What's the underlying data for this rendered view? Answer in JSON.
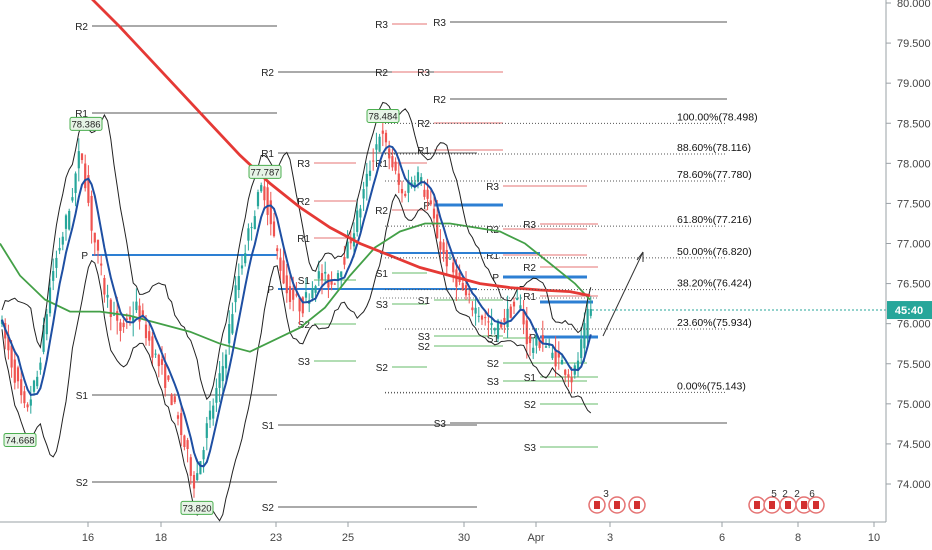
{
  "chart_data": {
    "type": "candlestick",
    "ylim": [
      73.6,
      80.0
    ],
    "y_ticks": [
      80.0,
      79.5,
      79.0,
      78.5,
      78.0,
      77.5,
      77.0,
      76.5,
      76.0,
      75.5,
      75.0,
      74.5,
      74.0
    ],
    "y_tick_labels": [
      "80.000",
      "79.500",
      "79.000",
      "78.500",
      "78.000",
      "77.500",
      "77.000",
      "76.500",
      "76.000",
      "75.500",
      "75.000",
      "74.500",
      "74.000"
    ],
    "x_tick_labels": [
      "16",
      "18",
      "23",
      "25",
      "30",
      "Apr",
      "3",
      "6",
      "8",
      "10"
    ],
    "last_price": 76.17,
    "price_tag": "45:40",
    "colors": {
      "up": "#26a69a",
      "down": "#ef5350",
      "ma_slow": "#e53935",
      "ma_fast": "#1e4fa3",
      "ma_mid": "#43a047",
      "bands": "#222222",
      "pivot": "#2d7fd3",
      "level": "#555555"
    },
    "price_labels": [
      {
        "text": "78.386",
        "price": 78.386
      },
      {
        "text": "74.668",
        "price": 74.668
      },
      {
        "text": "77.787",
        "price": 77.787
      },
      {
        "text": "73.820",
        "price": 73.82
      },
      {
        "text": "78.484",
        "price": 78.484
      }
    ],
    "fib_levels": [
      {
        "label": "100.00%(78.498)",
        "price": 78.498
      },
      {
        "label": "88.60%(78.116)",
        "price": 78.116
      },
      {
        "label": "78.60%(77.780)",
        "price": 77.78
      },
      {
        "label": "61.80%(77.216)",
        "price": 77.216
      },
      {
        "label": "50.00%(76.820)",
        "price": 76.82
      },
      {
        "label": "38.20%(76.424)",
        "price": 76.424
      },
      {
        "label": "23.60%(75.934)",
        "price": 75.934
      },
      {
        "label": "0.00%(75.143)",
        "price": 75.143
      }
    ],
    "pivot_labels": {
      "P": "P",
      "R1": "R1",
      "R2": "R2",
      "R3": "R3",
      "S1": "S1",
      "S2": "S2",
      "S3": "S3"
    },
    "event_counts": [
      "3",
      "5",
      "2",
      "2",
      "6"
    ]
  }
}
